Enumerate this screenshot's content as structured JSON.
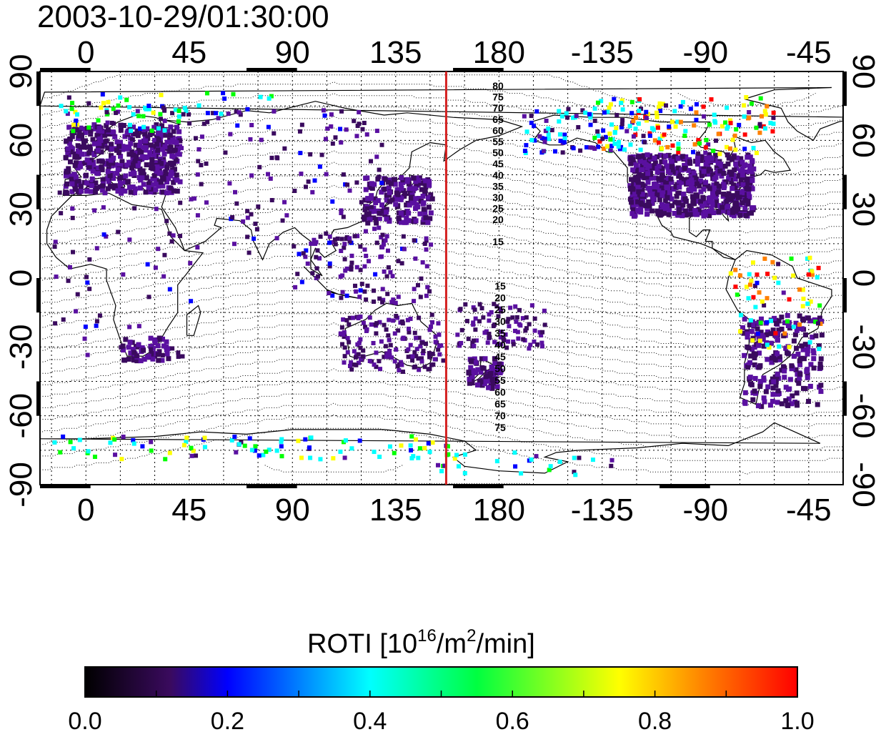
{
  "title": "2003-10-29/01:30:00",
  "lon_tick_labels": [
    "0",
    "45",
    "90",
    "135",
    "180",
    "-135",
    "-90",
    "-45"
  ],
  "lat_tick_labels": [
    "90",
    "60",
    "30",
    "0",
    "-30",
    "-60",
    "-90"
  ],
  "map": {
    "lon_range": [
      -20,
      330
    ],
    "lat_range": [
      -90,
      90
    ],
    "meridian_line_longitude": 157,
    "meridian_line_color": "#d42020",
    "gridlines": "dotted every 15 degrees",
    "contour_labels_north": [
      "80",
      "75",
      "70",
      "65",
      "60",
      "55",
      "50",
      "45",
      "40",
      "35",
      "30",
      "25",
      "20",
      "15"
    ],
    "contour_labels_south": [
      "15",
      "20",
      "25",
      "30",
      "35",
      "40",
      "45",
      "50",
      "55",
      "60",
      "65",
      "70",
      "75"
    ]
  },
  "colorbar": {
    "label_prefix": "ROTI  [10",
    "label_exp1": "16",
    "label_mid": "/m",
    "label_exp2": "2",
    "label_suffix": "/min]",
    "min": 0.0,
    "max": 1.0,
    "tick_labels": [
      "0.0",
      "0.2",
      "0.4",
      "0.6",
      "0.8",
      "1.0"
    ],
    "colors": [
      "#000000",
      "#3a0a5e",
      "#5a10a0",
      "#0000ff",
      "#00ffff",
      "#00ff00",
      "#ffff00",
      "#ff8000",
      "#ff0000"
    ]
  }
}
